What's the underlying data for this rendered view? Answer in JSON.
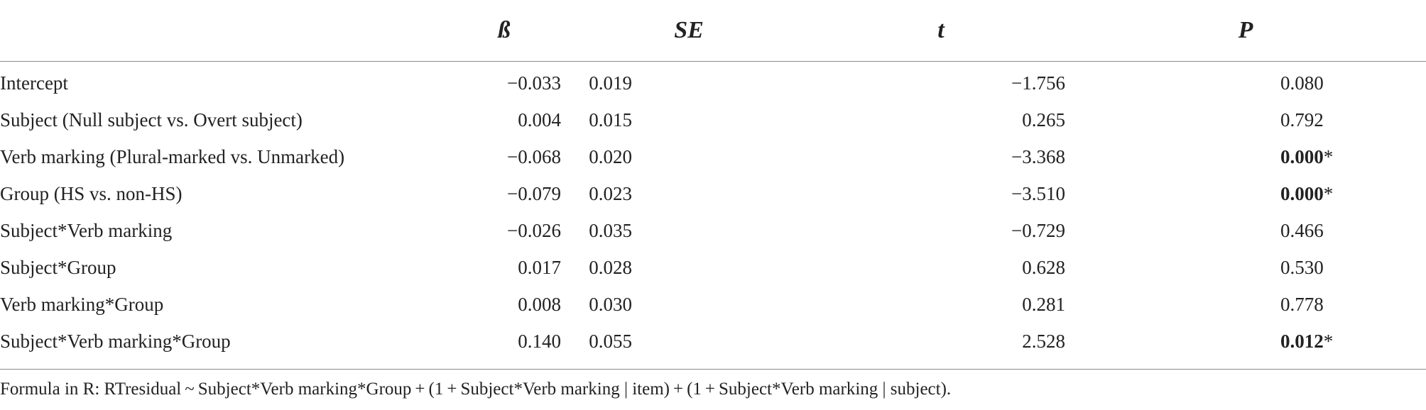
{
  "table": {
    "headers": {
      "label": "",
      "beta": "ß",
      "se": "SE",
      "t": "t",
      "p": "P"
    },
    "rows": [
      {
        "label": "Intercept",
        "beta": "−0.033",
        "se": "0.019",
        "t": "−1.756",
        "p": "0.080",
        "sig": ""
      },
      {
        "label": "Subject (Null subject vs. Overt subject)",
        "beta": "0.004",
        "se": "0.015",
        "t": "0.265",
        "p": "0.792",
        "sig": ""
      },
      {
        "label": "Verb marking (Plural-marked vs. Unmarked)",
        "beta": "−0.068",
        "se": "0.020",
        "t": "−3.368",
        "p": "0.000",
        "sig": "*"
      },
      {
        "label": "Group (HS vs. non-HS)",
        "beta": "−0.079",
        "se": "0.023",
        "t": "−3.510",
        "p": "0.000",
        "sig": "*"
      },
      {
        "label": "Subject*Verb marking",
        "beta": "−0.026",
        "se": "0.035",
        "t": "−0.729",
        "p": "0.466",
        "sig": ""
      },
      {
        "label": "Subject*Group",
        "beta": "0.017",
        "se": "0.028",
        "t": "0.628",
        "p": "0.530",
        "sig": ""
      },
      {
        "label": "Verb marking*Group",
        "beta": "0.008",
        "se": "0.030",
        "t": "0.281",
        "p": "0.778",
        "sig": ""
      },
      {
        "label": "Subject*Verb marking*Group",
        "beta": "0.140",
        "se": "0.055",
        "t": "2.528",
        "p": "0.012",
        "sig": "*"
      }
    ]
  },
  "footnote": "Formula in R: RTresidual ~ Subject*Verb marking*Group + (1 + Subject*Verb marking | item) + (1 + Subject*Verb marking | subject)."
}
